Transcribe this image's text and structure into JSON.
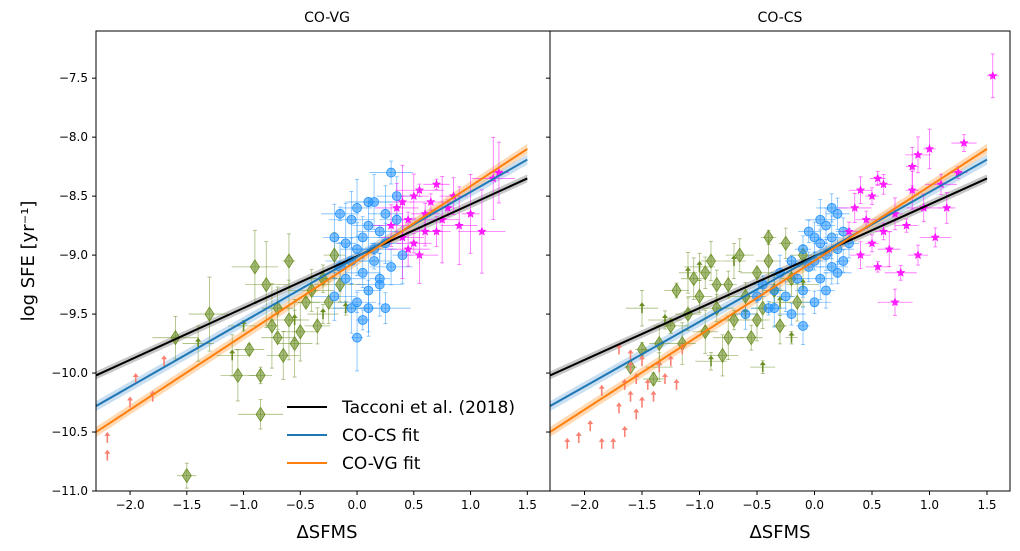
{
  "chart_data": {
    "type": "scatter",
    "ylabel": "log SFE [yr⁻¹]",
    "xlabel": "ΔSFMS",
    "xlim": [
      -2.3,
      1.7
    ],
    "ylim": [
      -11.0,
      -7.1
    ],
    "xticks": [
      -2.0,
      -1.5,
      -1.0,
      -0.5,
      0.0,
      0.5,
      1.0,
      1.5
    ],
    "xticklabels": [
      "−2.0",
      "−1.5",
      "−1.0",
      "−0.5",
      "0.0",
      "0.5",
      "1.0",
      "1.5"
    ],
    "yticks": [
      -11.0,
      -10.5,
      -10.0,
      -9.5,
      -9.0,
      -8.5,
      -8.0,
      -7.5
    ],
    "yticklabels": [
      "−11.0",
      "−10.5",
      "−10.0",
      "−9.5",
      "−9.0",
      "−8.5",
      "−8.0",
      "−7.5"
    ],
    "legend": {
      "placement": "lower-center of left panel",
      "entries": [
        {
          "label": "Tacconi et al. (2018)",
          "color": "#000000"
        },
        {
          "label": "CO-CS fit",
          "color": "#1f77b4"
        },
        {
          "label": "CO-VG fit",
          "color": "#ff7f0e"
        }
      ]
    },
    "fits": [
      {
        "name": "Tacconi et al. (2018)",
        "color": "#000000",
        "band": "#999999",
        "x": [
          -2.3,
          1.5
        ],
        "y": [
          -10.02,
          -8.35
        ]
      },
      {
        "name": "CO-CS fit",
        "color": "#1f77b4",
        "band": "#9ec7e8",
        "x": [
          -2.3,
          1.5
        ],
        "y": [
          -10.28,
          -8.19
        ]
      },
      {
        "name": "CO-VG fit",
        "color": "#ff7f0e",
        "band": "#ffbb78",
        "x": [
          -2.3,
          1.5
        ],
        "y": [
          -10.5,
          -8.1
        ]
      }
    ],
    "groups": {
      "green": {
        "color": "#6b8e23",
        "marker": "diamond"
      },
      "blue": {
        "color": "#1e90ff",
        "marker": "circle"
      },
      "magenta": {
        "color": "#ff00ff",
        "marker": "star"
      },
      "salmon": {
        "color": "#fa8072",
        "marker": "arrow"
      }
    },
    "panels": [
      {
        "title": "CO-VG",
        "green": [
          [
            -1.5,
            -10.87
          ],
          [
            -1.3,
            -9.5
          ],
          [
            -1.05,
            -10.02
          ],
          [
            -0.95,
            -9.8
          ],
          [
            -0.85,
            -10.02
          ],
          [
            -0.85,
            -10.35
          ],
          [
            -0.8,
            -9.25
          ],
          [
            -0.7,
            -9.45
          ],
          [
            -0.7,
            -9.7
          ],
          [
            -0.65,
            -9.85
          ],
          [
            -0.6,
            -9.05
          ],
          [
            -0.55,
            -9.75
          ],
          [
            -0.5,
            -9.65
          ],
          [
            -0.45,
            -9.4
          ],
          [
            -0.4,
            -9.3
          ],
          [
            -0.35,
            -9.6
          ],
          [
            -0.3,
            -9.2
          ],
          [
            -0.2,
            -9.0
          ],
          [
            -0.15,
            -9.25
          ],
          [
            -0.6,
            -9.55
          ],
          [
            -0.9,
            -9.1
          ],
          [
            -1.6,
            -9.7
          ],
          [
            -0.75,
            -9.6
          ],
          [
            -0.25,
            -9.4
          ]
        ],
        "green_arrows": [
          [
            -1.4,
            -9.75
          ],
          [
            -1.1,
            -9.85
          ],
          [
            -1.0,
            -9.6
          ],
          [
            -0.55,
            -9.55
          ],
          [
            -0.3,
            -9.5
          ],
          [
            -0.1,
            -9.45
          ]
        ],
        "blue": [
          [
            -0.2,
            -9.35
          ],
          [
            -0.15,
            -9.1
          ],
          [
            -0.1,
            -8.9
          ],
          [
            -0.1,
            -9.2
          ],
          [
            -0.05,
            -8.7
          ],
          [
            -0.05,
            -9.05
          ],
          [
            0.0,
            -8.95
          ],
          [
            0.0,
            -9.4
          ],
          [
            0.05,
            -8.85
          ],
          [
            0.05,
            -9.15
          ],
          [
            0.1,
            -8.75
          ],
          [
            0.1,
            -9.3
          ],
          [
            0.15,
            -8.95
          ],
          [
            0.15,
            -9.05
          ],
          [
            0.2,
            -8.8
          ],
          [
            0.2,
            -9.25
          ],
          [
            0.25,
            -8.9
          ],
          [
            0.3,
            -8.3
          ],
          [
            0.3,
            -9.1
          ],
          [
            0.35,
            -8.7
          ],
          [
            0.4,
            -9.0
          ],
          [
            -0.05,
            -9.45
          ],
          [
            0.0,
            -9.7
          ],
          [
            0.05,
            -9.55
          ],
          [
            0.1,
            -9.45
          ],
          [
            0.15,
            -8.55
          ],
          [
            0.2,
            -9.2
          ],
          [
            0.25,
            -8.65
          ],
          [
            -0.2,
            -8.85
          ],
          [
            -0.15,
            -8.65
          ],
          [
            0.0,
            -8.6
          ],
          [
            0.1,
            -8.55
          ],
          [
            0.25,
            -9.45
          ],
          [
            0.35,
            -8.5
          ]
        ],
        "magenta": [
          [
            0.3,
            -8.75
          ],
          [
            0.35,
            -8.6
          ],
          [
            0.4,
            -8.85
          ],
          [
            0.45,
            -8.7
          ],
          [
            0.5,
            -8.5
          ],
          [
            0.5,
            -8.9
          ],
          [
            0.55,
            -8.45
          ],
          [
            0.6,
            -8.65
          ],
          [
            0.6,
            -8.8
          ],
          [
            0.65,
            -8.55
          ],
          [
            0.7,
            -8.4
          ],
          [
            0.75,
            -8.7
          ],
          [
            0.8,
            -8.6
          ],
          [
            0.85,
            -8.5
          ],
          [
            0.9,
            -8.75
          ],
          [
            1.0,
            -8.65
          ],
          [
            1.1,
            -8.8
          ],
          [
            1.2,
            -8.35
          ],
          [
            1.25,
            -8.3
          ],
          [
            0.45,
            -8.95
          ],
          [
            0.55,
            -9.0
          ],
          [
            0.7,
            -8.8
          ],
          [
            0.4,
            -8.55
          ]
        ],
        "salmon": [
          [
            -2.2,
            -10.7
          ],
          [
            -2.2,
            -10.55
          ],
          [
            -2.0,
            -10.25
          ],
          [
            -1.95,
            -10.05
          ],
          [
            -1.8,
            -10.2
          ],
          [
            -1.7,
            -9.9
          ]
        ]
      },
      {
        "title": "CO-CS",
        "green": [
          [
            -1.6,
            -9.95
          ],
          [
            -1.5,
            -9.8
          ],
          [
            -1.4,
            -10.05
          ],
          [
            -1.35,
            -9.75
          ],
          [
            -1.25,
            -9.6
          ],
          [
            -1.2,
            -9.3
          ],
          [
            -1.1,
            -9.5
          ],
          [
            -1.05,
            -9.2
          ],
          [
            -1.0,
            -9.35
          ],
          [
            -0.95,
            -9.65
          ],
          [
            -0.9,
            -9.05
          ],
          [
            -0.85,
            -9.45
          ],
          [
            -0.8,
            -9.85
          ],
          [
            -0.75,
            -9.25
          ],
          [
            -0.7,
            -9.55
          ],
          [
            -0.65,
            -9.0
          ],
          [
            -0.6,
            -9.35
          ],
          [
            -0.55,
            -9.7
          ],
          [
            -0.5,
            -9.15
          ],
          [
            -0.45,
            -9.45
          ],
          [
            -0.4,
            -9.05
          ],
          [
            -0.35,
            -9.3
          ],
          [
            -0.3,
            -9.6
          ],
          [
            -0.25,
            -8.9
          ],
          [
            -0.2,
            -9.2
          ],
          [
            -0.15,
            -9.4
          ],
          [
            -0.1,
            -9.0
          ],
          [
            -0.4,
            -8.85
          ],
          [
            -0.5,
            -9.55
          ],
          [
            -0.75,
            -9.7
          ],
          [
            -0.95,
            -9.15
          ],
          [
            -1.15,
            -9.75
          ],
          [
            -0.85,
            -9.25
          ]
        ],
        "green_arrows": [
          [
            -1.5,
            -9.45
          ],
          [
            -1.3,
            -9.55
          ],
          [
            -1.0,
            -9.1
          ],
          [
            -0.9,
            -9.9
          ],
          [
            -0.7,
            -9.05
          ],
          [
            -0.6,
            -9.5
          ],
          [
            -0.45,
            -9.95
          ],
          [
            -0.3,
            -9.4
          ],
          [
            -0.2,
            -9.7
          ],
          [
            -0.1,
            -9.25
          ],
          [
            -1.1,
            -9.15
          ],
          [
            -1.35,
            -9.95
          ]
        ],
        "blue": [
          [
            -0.6,
            -9.5
          ],
          [
            -0.5,
            -9.35
          ],
          [
            -0.45,
            -9.25
          ],
          [
            -0.4,
            -9.45
          ],
          [
            -0.35,
            -9.3
          ],
          [
            -0.3,
            -9.15
          ],
          [
            -0.25,
            -9.35
          ],
          [
            -0.2,
            -9.05
          ],
          [
            -0.15,
            -9.2
          ],
          [
            -0.1,
            -8.95
          ],
          [
            -0.1,
            -9.3
          ],
          [
            -0.05,
            -9.1
          ],
          [
            0.0,
            -8.85
          ],
          [
            0.0,
            -9.05
          ],
          [
            0.05,
            -8.9
          ],
          [
            0.05,
            -9.2
          ],
          [
            0.1,
            -8.75
          ],
          [
            0.1,
            -9.0
          ],
          [
            0.15,
            -8.85
          ],
          [
            0.15,
            -9.1
          ],
          [
            0.2,
            -8.65
          ],
          [
            0.2,
            -8.95
          ],
          [
            0.25,
            -8.8
          ],
          [
            0.25,
            -9.05
          ],
          [
            -0.2,
            -9.5
          ],
          [
            -0.1,
            -9.6
          ],
          [
            0.0,
            -9.4
          ],
          [
            0.05,
            -8.7
          ],
          [
            0.15,
            -8.6
          ],
          [
            0.2,
            -9.15
          ],
          [
            -0.35,
            -9.45
          ],
          [
            -0.05,
            -8.8
          ],
          [
            0.1,
            -9.3
          ],
          [
            0.3,
            -8.9
          ]
        ],
        "magenta": [
          [
            0.3,
            -8.8
          ],
          [
            0.35,
            -8.6
          ],
          [
            0.4,
            -9.0
          ],
          [
            0.45,
            -8.7
          ],
          [
            0.5,
            -8.9
          ],
          [
            0.5,
            -8.5
          ],
          [
            0.55,
            -9.1
          ],
          [
            0.6,
            -8.8
          ],
          [
            0.6,
            -8.4
          ],
          [
            0.65,
            -8.95
          ],
          [
            0.7,
            -8.65
          ],
          [
            0.75,
            -9.15
          ],
          [
            0.8,
            -8.75
          ],
          [
            0.85,
            -8.45
          ],
          [
            0.85,
            -8.25
          ],
          [
            0.9,
            -9.0
          ],
          [
            0.95,
            -8.6
          ],
          [
            1.0,
            -8.1
          ],
          [
            1.05,
            -8.85
          ],
          [
            1.15,
            -8.6
          ],
          [
            1.25,
            -8.3
          ],
          [
            1.3,
            -8.05
          ],
          [
            1.55,
            -7.48
          ],
          [
            0.7,
            -9.4
          ],
          [
            0.4,
            -8.45
          ],
          [
            0.55,
            -8.35
          ],
          [
            0.9,
            -8.15
          ],
          [
            1.1,
            -8.4
          ]
        ],
        "salmon": [
          [
            -2.15,
            -10.6
          ],
          [
            -2.05,
            -10.55
          ],
          [
            -1.95,
            -10.45
          ],
          [
            -1.85,
            -10.6
          ],
          [
            -1.75,
            -10.6
          ],
          [
            -1.7,
            -10.3
          ],
          [
            -1.65,
            -10.5
          ],
          [
            -1.65,
            -10.1
          ],
          [
            -1.6,
            -10.2
          ],
          [
            -1.6,
            -9.95
          ],
          [
            -1.55,
            -10.35
          ],
          [
            -1.55,
            -10.05
          ],
          [
            -1.5,
            -10.25
          ],
          [
            -1.5,
            -9.9
          ],
          [
            -1.45,
            -10.1
          ],
          [
            -1.4,
            -10.2
          ],
          [
            -1.35,
            -9.95
          ],
          [
            -1.3,
            -10.05
          ],
          [
            -1.25,
            -9.9
          ],
          [
            -1.2,
            -10.1
          ],
          [
            -1.15,
            -9.8
          ],
          [
            -1.7,
            -9.8
          ],
          [
            -1.6,
            -9.85
          ],
          [
            -1.85,
            -10.15
          ]
        ]
      }
    ]
  }
}
